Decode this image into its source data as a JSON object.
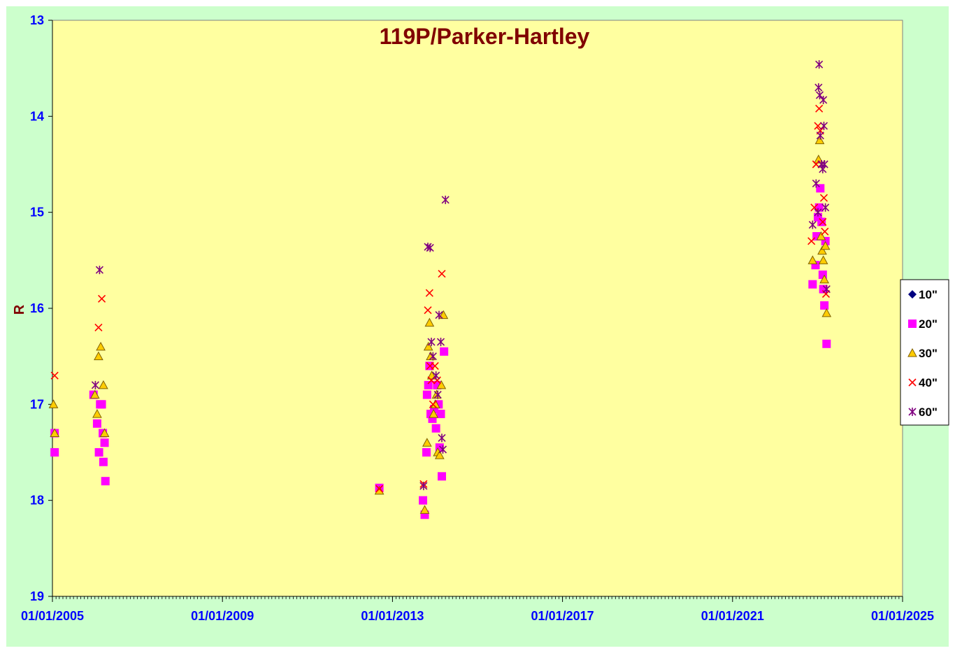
{
  "chart_data": {
    "type": "scatter",
    "title": "119P/Parker-Hartley",
    "xlabel": "",
    "ylabel": "R",
    "xlim": [
      "2005-01-01",
      "2025-01-01"
    ],
    "ylim": [
      13,
      19
    ],
    "y_inverted": true,
    "x_ticks": [
      "01/01/2005",
      "01/01/2009",
      "01/01/2013",
      "01/01/2017",
      "01/01/2021",
      "01/01/2025"
    ],
    "y_ticks": [
      13,
      14,
      15,
      16,
      17,
      18,
      19
    ],
    "grid": false,
    "legend_position": "right",
    "colors": {
      "plot_bg": "#ffffa0",
      "outer_bg": "#ccffcc",
      "title": "#800000",
      "ticks": "#0000ff"
    },
    "series": [
      {
        "name": "10\"",
        "marker": "diamond",
        "color": "#000080",
        "points": []
      },
      {
        "name": "20\"",
        "marker": "square",
        "color": "#ff00ff",
        "points": [
          [
            "2005-01-20",
            17.3
          ],
          [
            "2005-01-20",
            17.5
          ],
          [
            "2005-12-20",
            16.9
          ],
          [
            "2006-01-20",
            17.2
          ],
          [
            "2006-02-05",
            17.5
          ],
          [
            "2006-02-15",
            17.0
          ],
          [
            "2006-03-01",
            17.0
          ],
          [
            "2006-03-10",
            17.3
          ],
          [
            "2006-03-15",
            17.6
          ],
          [
            "2006-03-25",
            17.4
          ],
          [
            "2006-04-01",
            17.8
          ],
          [
            "2012-09-10",
            17.87
          ],
          [
            "2013-09-20",
            18.0
          ],
          [
            "2013-10-05",
            18.15
          ],
          [
            "2013-10-20",
            17.5
          ],
          [
            "2013-10-25",
            16.9
          ],
          [
            "2013-11-05",
            16.8
          ],
          [
            "2013-11-15",
            16.6
          ],
          [
            "2013-11-25",
            17.1
          ],
          [
            "2013-12-10",
            17.15
          ],
          [
            "2013-12-25",
            17.05
          ],
          [
            "2014-01-10",
            17.25
          ],
          [
            "2014-01-20",
            16.8
          ],
          [
            "2014-02-01",
            17.0
          ],
          [
            "2014-02-10",
            17.45
          ],
          [
            "2014-02-20",
            17.1
          ],
          [
            "2014-03-01",
            17.75
          ],
          [
            "2014-03-20",
            16.45
          ],
          [
            "2022-11-20",
            15.75
          ],
          [
            "2022-12-15",
            15.55
          ],
          [
            "2022-12-25",
            15.25
          ],
          [
            "2023-01-05",
            15.05
          ],
          [
            "2023-01-15",
            14.95
          ],
          [
            "2023-01-25",
            14.75
          ],
          [
            "2023-02-05",
            15.1
          ],
          [
            "2023-02-15",
            15.65
          ],
          [
            "2023-02-20",
            15.8
          ],
          [
            "2023-03-01",
            15.97
          ],
          [
            "2023-03-10",
            15.3
          ],
          [
            "2023-03-20",
            16.37
          ]
        ]
      },
      {
        "name": "30\"",
        "marker": "triangle",
        "color": "#ffcc00",
        "points": [
          [
            "2005-01-10",
            17.0
          ],
          [
            "2005-01-20",
            17.3
          ],
          [
            "2006-01-01",
            16.9
          ],
          [
            "2006-01-20",
            17.1
          ],
          [
            "2006-02-01",
            16.5
          ],
          [
            "2006-02-20",
            16.4
          ],
          [
            "2006-03-15",
            16.8
          ],
          [
            "2006-03-25",
            17.3
          ],
          [
            "2012-09-10",
            17.9
          ],
          [
            "2013-10-05",
            18.1
          ],
          [
            "2013-10-25",
            17.4
          ],
          [
            "2013-11-05",
            16.4
          ],
          [
            "2013-11-15",
            16.15
          ],
          [
            "2013-11-25",
            16.5
          ],
          [
            "2013-12-05",
            16.7
          ],
          [
            "2013-12-20",
            17.1
          ],
          [
            "2014-01-05",
            17.0
          ],
          [
            "2014-01-15",
            16.9
          ],
          [
            "2014-01-25",
            17.5
          ],
          [
            "2014-02-10",
            17.53
          ],
          [
            "2014-02-25",
            16.8
          ],
          [
            "2014-03-15",
            16.07
          ],
          [
            "2022-11-20",
            15.5
          ],
          [
            "2023-01-10",
            14.45
          ],
          [
            "2023-01-20",
            14.25
          ],
          [
            "2023-02-01",
            15.25
          ],
          [
            "2023-02-10",
            15.4
          ],
          [
            "2023-02-20",
            15.5
          ],
          [
            "2023-03-01",
            15.7
          ],
          [
            "2023-03-10",
            15.35
          ],
          [
            "2023-03-20",
            16.05
          ]
        ]
      },
      {
        "name": "40\"",
        "marker": "x",
        "color": "#ff0000",
        "points": [
          [
            "2005-01-20",
            16.7
          ],
          [
            "2006-02-01",
            16.2
          ],
          [
            "2006-03-01",
            15.9
          ],
          [
            "2012-09-10",
            17.88
          ],
          [
            "2013-09-25",
            17.83
          ],
          [
            "2013-11-01",
            16.02
          ],
          [
            "2013-11-15",
            15.84
          ],
          [
            "2013-11-20",
            16.6
          ],
          [
            "2013-12-01",
            16.75
          ],
          [
            "2013-12-15",
            17.0
          ],
          [
            "2014-01-01",
            16.6
          ],
          [
            "2014-01-20",
            16.75
          ],
          [
            "2014-03-01",
            15.64
          ],
          [
            "2022-11-10",
            15.3
          ],
          [
            "2022-12-05",
            14.95
          ],
          [
            "2022-12-20",
            14.5
          ],
          [
            "2023-01-05",
            14.1
          ],
          [
            "2023-01-15",
            13.92
          ],
          [
            "2023-01-25",
            14.15
          ],
          [
            "2023-02-05",
            14.5
          ],
          [
            "2023-02-15",
            15.1
          ],
          [
            "2023-02-25",
            14.85
          ],
          [
            "2023-03-05",
            15.2
          ],
          [
            "2023-03-15",
            15.85
          ]
        ]
      },
      {
        "name": "60\"",
        "marker": "star",
        "color": "#800080",
        "points": [
          [
            "2006-01-05",
            16.8
          ],
          [
            "2006-02-10",
            15.6
          ],
          [
            "2013-09-25",
            17.85
          ],
          [
            "2013-11-01",
            15.36
          ],
          [
            "2013-11-20",
            15.37
          ],
          [
            "2013-12-01",
            16.35
          ],
          [
            "2013-12-15",
            16.5
          ],
          [
            "2014-01-10",
            16.7
          ],
          [
            "2014-01-25",
            16.9
          ],
          [
            "2014-02-05",
            16.07
          ],
          [
            "2014-02-20",
            16.35
          ],
          [
            "2014-03-01",
            17.35
          ],
          [
            "2014-03-10",
            17.47
          ],
          [
            "2014-04-01",
            14.87
          ],
          [
            "2022-11-20",
            15.13
          ],
          [
            "2022-12-20",
            14.7
          ],
          [
            "2023-01-05",
            15.0
          ],
          [
            "2023-01-10",
            13.7
          ],
          [
            "2023-01-15",
            13.46
          ],
          [
            "2023-01-20",
            13.78
          ],
          [
            "2023-01-25",
            14.2
          ],
          [
            "2023-02-05",
            14.5
          ],
          [
            "2023-02-15",
            14.55
          ],
          [
            "2023-02-20",
            13.83
          ],
          [
            "2023-02-25",
            14.1
          ],
          [
            "2023-03-01",
            14.5
          ],
          [
            "2023-03-10",
            14.95
          ],
          [
            "2023-03-20",
            15.8
          ]
        ]
      }
    ]
  }
}
